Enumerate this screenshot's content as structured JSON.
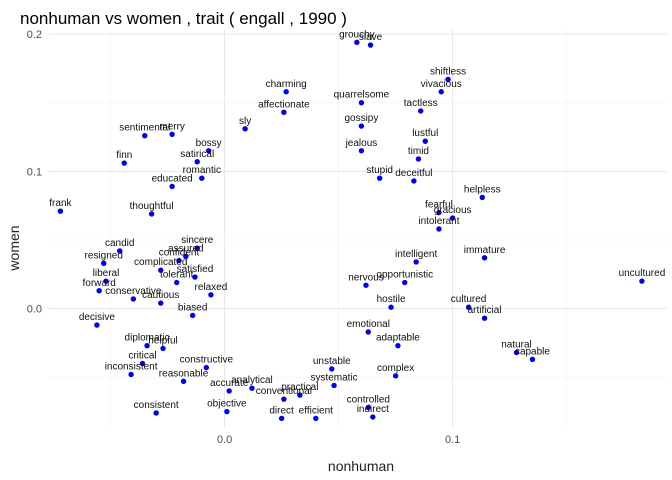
{
  "chart_data": {
    "type": "scatter",
    "title": "nonhuman vs women , trait ( engall , 1990 )",
    "xlabel": "nonhuman",
    "ylabel": "women",
    "xlim": [
      -0.077,
      0.194
    ],
    "ylim": [
      -0.087,
      0.203
    ],
    "x_ticks": [
      0.0,
      0.1
    ],
    "y_ticks": [
      0.0,
      0.1,
      0.2
    ],
    "x_tick_labels": [
      "0.0",
      "0.1"
    ],
    "y_tick_labels": [
      "0.0",
      "0.1",
      "0.2"
    ],
    "grid": true,
    "point_color": "#0000ee",
    "points": [
      {
        "label": "grouchy",
        "x": 0.058,
        "y": 0.194
      },
      {
        "label": "slave",
        "x": 0.064,
        "y": 0.192
      },
      {
        "label": "shiftless",
        "x": 0.098,
        "y": 0.167
      },
      {
        "label": "vivacious",
        "x": 0.095,
        "y": 0.158
      },
      {
        "label": "charming",
        "x": 0.027,
        "y": 0.158
      },
      {
        "label": "quarrelsome",
        "x": 0.06,
        "y": 0.15
      },
      {
        "label": "affectionate",
        "x": 0.026,
        "y": 0.143
      },
      {
        "label": "tactless",
        "x": 0.086,
        "y": 0.144
      },
      {
        "label": "sly",
        "x": 0.009,
        "y": 0.131
      },
      {
        "label": "lustful",
        "x": 0.088,
        "y": 0.122
      },
      {
        "label": "sentimental",
        "x": -0.035,
        "y": 0.126
      },
      {
        "label": "merry",
        "x": -0.023,
        "y": 0.127
      },
      {
        "label": "finn",
        "x": -0.044,
        "y": 0.106
      },
      {
        "label": "timid",
        "x": 0.085,
        "y": 0.109
      },
      {
        "label": "educated",
        "x": -0.023,
        "y": 0.089
      },
      {
        "label": "helpless",
        "x": 0.113,
        "y": 0.081
      },
      {
        "label": "frank",
        "x": -0.072,
        "y": 0.071
      },
      {
        "label": "thoughtful",
        "x": -0.032,
        "y": 0.069
      },
      {
        "label": "intolerant",
        "x": 0.094,
        "y": 0.058
      },
      {
        "label": "immature",
        "x": 0.114,
        "y": 0.037
      },
      {
        "label": "candid",
        "x": -0.046,
        "y": 0.042
      },
      {
        "label": "sincere",
        "x": -0.012,
        "y": 0.044
      },
      {
        "label": "resigned",
        "x": -0.053,
        "y": 0.033
      },
      {
        "label": "intelligent",
        "x": 0.084,
        "y": 0.034
      },
      {
        "label": "liberal",
        "x": -0.052,
        "y": 0.02
      },
      {
        "label": "uncultured",
        "x": 0.183,
        "y": 0.02
      },
      {
        "label": "forward",
        "x": -0.055,
        "y": 0.013
      },
      {
        "label": "conservative",
        "x": -0.04,
        "y": 0.007
      },
      {
        "label": "opportunistic",
        "x": 0.079,
        "y": 0.019
      },
      {
        "label": "hostile",
        "x": 0.073,
        "y": 0.001
      },
      {
        "label": "cultured",
        "x": 0.107,
        "y": 0.001
      },
      {
        "label": "artificial",
        "x": 0.114,
        "y": -0.007
      },
      {
        "label": "decisive",
        "x": -0.056,
        "y": -0.012
      },
      {
        "label": "diplomatic",
        "x": -0.034,
        "y": -0.027
      },
      {
        "label": "adaptable",
        "x": 0.076,
        "y": -0.027
      },
      {
        "label": "natural",
        "x": 0.128,
        "y": -0.032
      },
      {
        "label": "capable",
        "x": 0.135,
        "y": -0.037
      },
      {
        "label": "critical",
        "x": -0.036,
        "y": -0.04
      },
      {
        "label": "inconsistent",
        "x": -0.041,
        "y": -0.048
      },
      {
        "label": "reasonable",
        "x": -0.018,
        "y": -0.053
      },
      {
        "label": "unstable",
        "x": 0.047,
        "y": -0.044
      },
      {
        "label": "complex",
        "x": 0.075,
        "y": -0.049
      },
      {
        "label": "systematic",
        "x": 0.048,
        "y": -0.056
      },
      {
        "label": "accurate",
        "x": 0.002,
        "y": -0.06
      },
      {
        "label": "analytical",
        "x": 0.012,
        "y": -0.058
      },
      {
        "label": "controlled",
        "x": 0.063,
        "y": -0.072
      },
      {
        "label": "consistent",
        "x": -0.03,
        "y": -0.076
      },
      {
        "label": "objective",
        "x": 0.001,
        "y": -0.075
      },
      {
        "label": "direct",
        "x": 0.025,
        "y": -0.08
      },
      {
        "label": "efficient",
        "x": 0.04,
        "y": -0.08
      },
      {
        "label": "indirect",
        "x": 0.065,
        "y": -0.079
      },
      {
        "label": "conventional",
        "x": 0.026,
        "y": -0.066
      },
      {
        "label": "practical",
        "x": 0.033,
        "y": -0.063
      },
      {
        "label": "satirical",
        "x": -0.012,
        "y": 0.107
      },
      {
        "label": "bossy",
        "x": -0.007,
        "y": 0.115
      },
      {
        "label": "romantic",
        "x": -0.01,
        "y": 0.095
      },
      {
        "label": "assured",
        "x": -0.017,
        "y": 0.038
      },
      {
        "label": "confident",
        "x": -0.02,
        "y": 0.035
      },
      {
        "label": "satisfied",
        "x": -0.013,
        "y": 0.023
      },
      {
        "label": "relaxed",
        "x": -0.006,
        "y": 0.01
      },
      {
        "label": "cautious",
        "x": -0.028,
        "y": 0.004
      },
      {
        "label": "biased",
        "x": -0.014,
        "y": -0.005
      },
      {
        "label": "helpful",
        "x": -0.027,
        "y": -0.029
      },
      {
        "label": "constructive",
        "x": -0.008,
        "y": -0.043
      },
      {
        "label": "tolerant",
        "x": -0.021,
        "y": 0.019
      },
      {
        "label": "complicated",
        "x": -0.028,
        "y": 0.028
      },
      {
        "label": "deceitful",
        "x": 0.083,
        "y": 0.093
      },
      {
        "label": "fearful",
        "x": 0.094,
        "y": 0.07
      },
      {
        "label": "gossipy",
        "x": 0.06,
        "y": 0.133
      },
      {
        "label": "jealous",
        "x": 0.06,
        "y": 0.115
      },
      {
        "label": "stupid",
        "x": 0.068,
        "y": 0.095
      },
      {
        "label": "gracious",
        "x": 0.1,
        "y": 0.066
      },
      {
        "label": "nervous",
        "x": 0.062,
        "y": 0.017
      },
      {
        "label": "emotional",
        "x": 0.063,
        "y": -0.017
      }
    ]
  }
}
